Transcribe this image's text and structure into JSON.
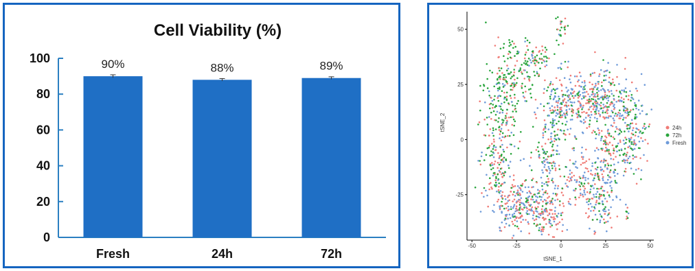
{
  "chart_data": [
    {
      "type": "bar",
      "title": "Cell Viability (%)",
      "categories": [
        "Fresh",
        "24h",
        "72h"
      ],
      "values": [
        90,
        88,
        89
      ],
      "value_labels": [
        "90%",
        "88%",
        "89%"
      ],
      "errors": [
        0.8,
        0.7,
        0.7
      ],
      "ylim": [
        0,
        100
      ],
      "yticks": [
        0,
        20,
        40,
        60,
        80,
        100
      ],
      "ytick_labels": [
        "0",
        "20",
        "40",
        "60",
        "80",
        "100"
      ],
      "xlabel": "",
      "ylabel": "",
      "grid": false,
      "colors": {
        "bar": "#1f6fc5",
        "axis": "#2a7fc1",
        "frame": "#1565c0"
      }
    },
    {
      "type": "scatter",
      "xlabel": "tSNE_1",
      "ylabel": "tSNE_2",
      "xlim": [
        -52,
        52
      ],
      "ylim": [
        -45,
        58
      ],
      "xticks": [
        -50,
        -25,
        0,
        25,
        50
      ],
      "xtick_labels": [
        "-50",
        "-25",
        "0",
        "25",
        "50"
      ],
      "yticks": [
        -25,
        0,
        25,
        50
      ],
      "ytick_labels": [
        "-25",
        "0",
        "25",
        "50"
      ],
      "grid": false,
      "legend_position": "right",
      "series": [
        {
          "name": "24h",
          "color": "#f07b76"
        },
        {
          "name": "72h",
          "color": "#2aa53d"
        },
        {
          "name": "Fresh",
          "color": "#6f9bd9"
        }
      ],
      "clusters": [
        {
          "cx": -33,
          "cy": 20,
          "sx": 6,
          "sy": 13,
          "n": 180,
          "weights": [
            0.2,
            0.65,
            0.15
          ]
        },
        {
          "cx": -23,
          "cy": 30,
          "sx": 6,
          "sy": 6,
          "n": 90,
          "weights": [
            0.25,
            0.6,
            0.15
          ]
        },
        {
          "cx": -14,
          "cy": 37,
          "sx": 4,
          "sy": 3,
          "n": 50,
          "weights": [
            0.25,
            0.6,
            0.15
          ]
        },
        {
          "cx": 0,
          "cy": 49,
          "sx": 1.5,
          "sy": 4,
          "n": 25,
          "weights": [
            0.35,
            0.5,
            0.15
          ]
        },
        {
          "cx": -36,
          "cy": -10,
          "sx": 5,
          "sy": 9,
          "n": 140,
          "weights": [
            0.35,
            0.35,
            0.3
          ]
        },
        {
          "cx": -25,
          "cy": -30,
          "sx": 7,
          "sy": 6,
          "n": 200,
          "weights": [
            0.5,
            0.15,
            0.35
          ]
        },
        {
          "cx": -9,
          "cy": -33,
          "sx": 6,
          "sy": 5,
          "n": 150,
          "weights": [
            0.45,
            0.2,
            0.35
          ]
        },
        {
          "cx": -8,
          "cy": -10,
          "sx": 4,
          "sy": 8,
          "n": 110,
          "weights": [
            0.3,
            0.35,
            0.35
          ]
        },
        {
          "cx": -2,
          "cy": 12,
          "sx": 5,
          "sy": 8,
          "n": 140,
          "weights": [
            0.3,
            0.3,
            0.4
          ]
        },
        {
          "cx": 12,
          "cy": 17,
          "sx": 8,
          "sy": 7,
          "n": 220,
          "weights": [
            0.35,
            0.25,
            0.4
          ]
        },
        {
          "cx": 28,
          "cy": 17,
          "sx": 8,
          "sy": 8,
          "n": 200,
          "weights": [
            0.3,
            0.25,
            0.45
          ]
        },
        {
          "cx": 40,
          "cy": 0,
          "sx": 5,
          "sy": 10,
          "n": 130,
          "weights": [
            0.25,
            0.35,
            0.4
          ]
        },
        {
          "cx": 25,
          "cy": -10,
          "sx": 6,
          "sy": 8,
          "n": 150,
          "weights": [
            0.3,
            0.3,
            0.4
          ]
        },
        {
          "cx": 22,
          "cy": -30,
          "sx": 4,
          "sy": 6,
          "n": 90,
          "weights": [
            0.3,
            0.25,
            0.45
          ]
        },
        {
          "cx": 10,
          "cy": -18,
          "sx": 6,
          "sy": 6,
          "n": 100,
          "weights": [
            0.4,
            0.2,
            0.4
          ]
        },
        {
          "cx": 37,
          "cy": -34,
          "sx": 0.6,
          "sy": 1.2,
          "n": 8,
          "weights": [
            0.3,
            0.3,
            0.4
          ]
        }
      ]
    }
  ]
}
